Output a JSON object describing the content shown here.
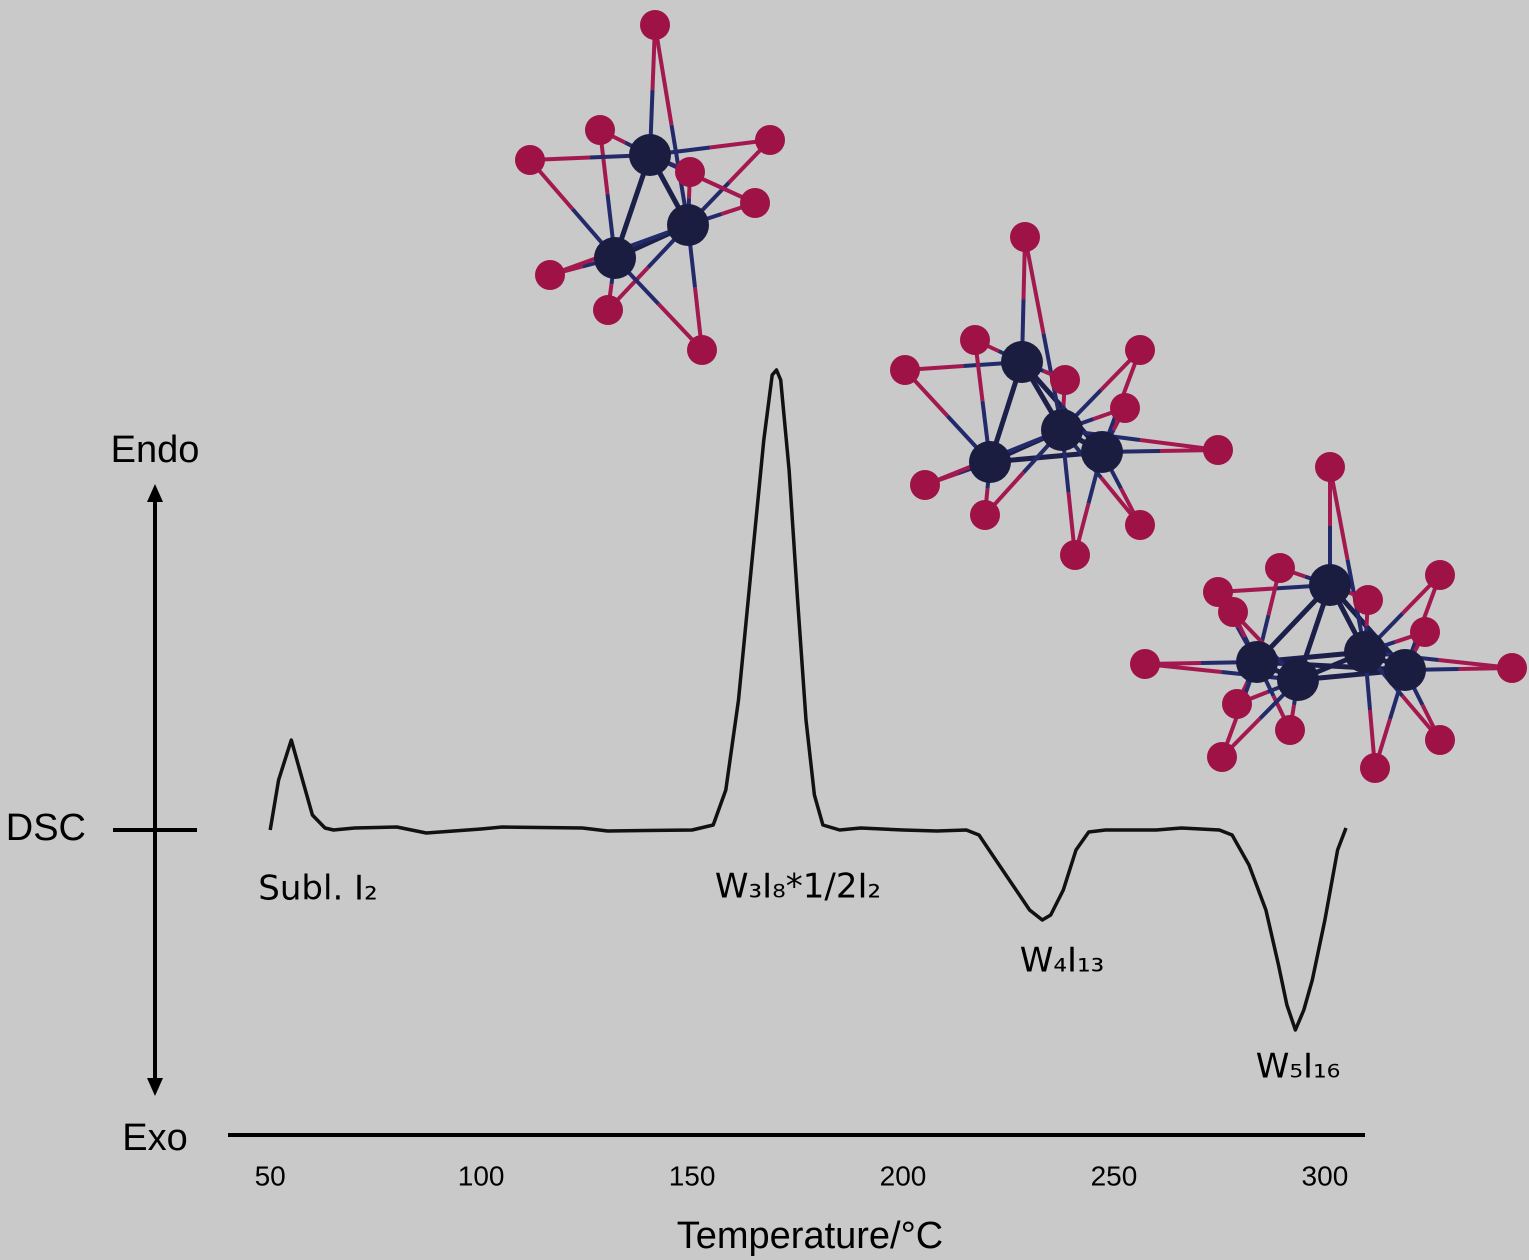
{
  "chart_data": {
    "type": "line",
    "x_label": "Temperature/°C",
    "y_label_top": "Endo",
    "y_label_bottom": "Exo",
    "xlim": [
      40,
      309.5
    ],
    "xticks": [
      50,
      100,
      150,
      200,
      250,
      300
    ],
    "ylim": [
      -3.05,
      5.0
    ],
    "yticks": [
      {
        "value": 0,
        "label": "DSC"
      }
    ],
    "grid": false,
    "x": [
      50,
      52,
      55,
      57,
      60,
      63,
      65,
      70,
      80,
      87,
      100,
      105,
      124,
      130,
      150,
      155,
      158,
      161,
      164,
      167,
      169,
      170,
      171,
      173,
      175,
      177,
      179,
      181,
      185,
      190,
      200,
      208,
      215,
      218,
      222,
      226,
      230,
      233,
      235,
      238,
      241,
      244,
      248,
      260,
      266,
      275,
      278,
      282,
      286,
      289,
      291,
      293,
      295,
      297,
      300,
      303,
      305
    ],
    "series": [
      {
        "name": "DSC",
        "color": "#111111",
        "values": [
          0,
          0.5,
          0.9,
          0.6,
          0.15,
          0.02,
          0,
          0.02,
          0.03,
          -0.03,
          0.01,
          0.03,
          0.02,
          -0.01,
          0,
          0.05,
          0.4,
          1.3,
          2.6,
          3.9,
          4.55,
          4.6,
          4.5,
          3.6,
          2.3,
          1.1,
          0.35,
          0.05,
          0,
          0.02,
          0,
          -0.01,
          0,
          -0.05,
          -0.3,
          -0.55,
          -0.8,
          -0.9,
          -0.85,
          -0.6,
          -0.2,
          -0.02,
          0,
          0,
          0.02,
          0,
          -0.05,
          -0.35,
          -0.8,
          -1.35,
          -1.75,
          -2.0,
          -1.8,
          -1.5,
          -0.9,
          -0.2,
          0.02
        ]
      }
    ],
    "annotations": [
      "Subl. I₂",
      "W₃I₈*1/2I₂",
      "W₄I₁₃",
      "W₅I₁₆"
    ]
  }
}
